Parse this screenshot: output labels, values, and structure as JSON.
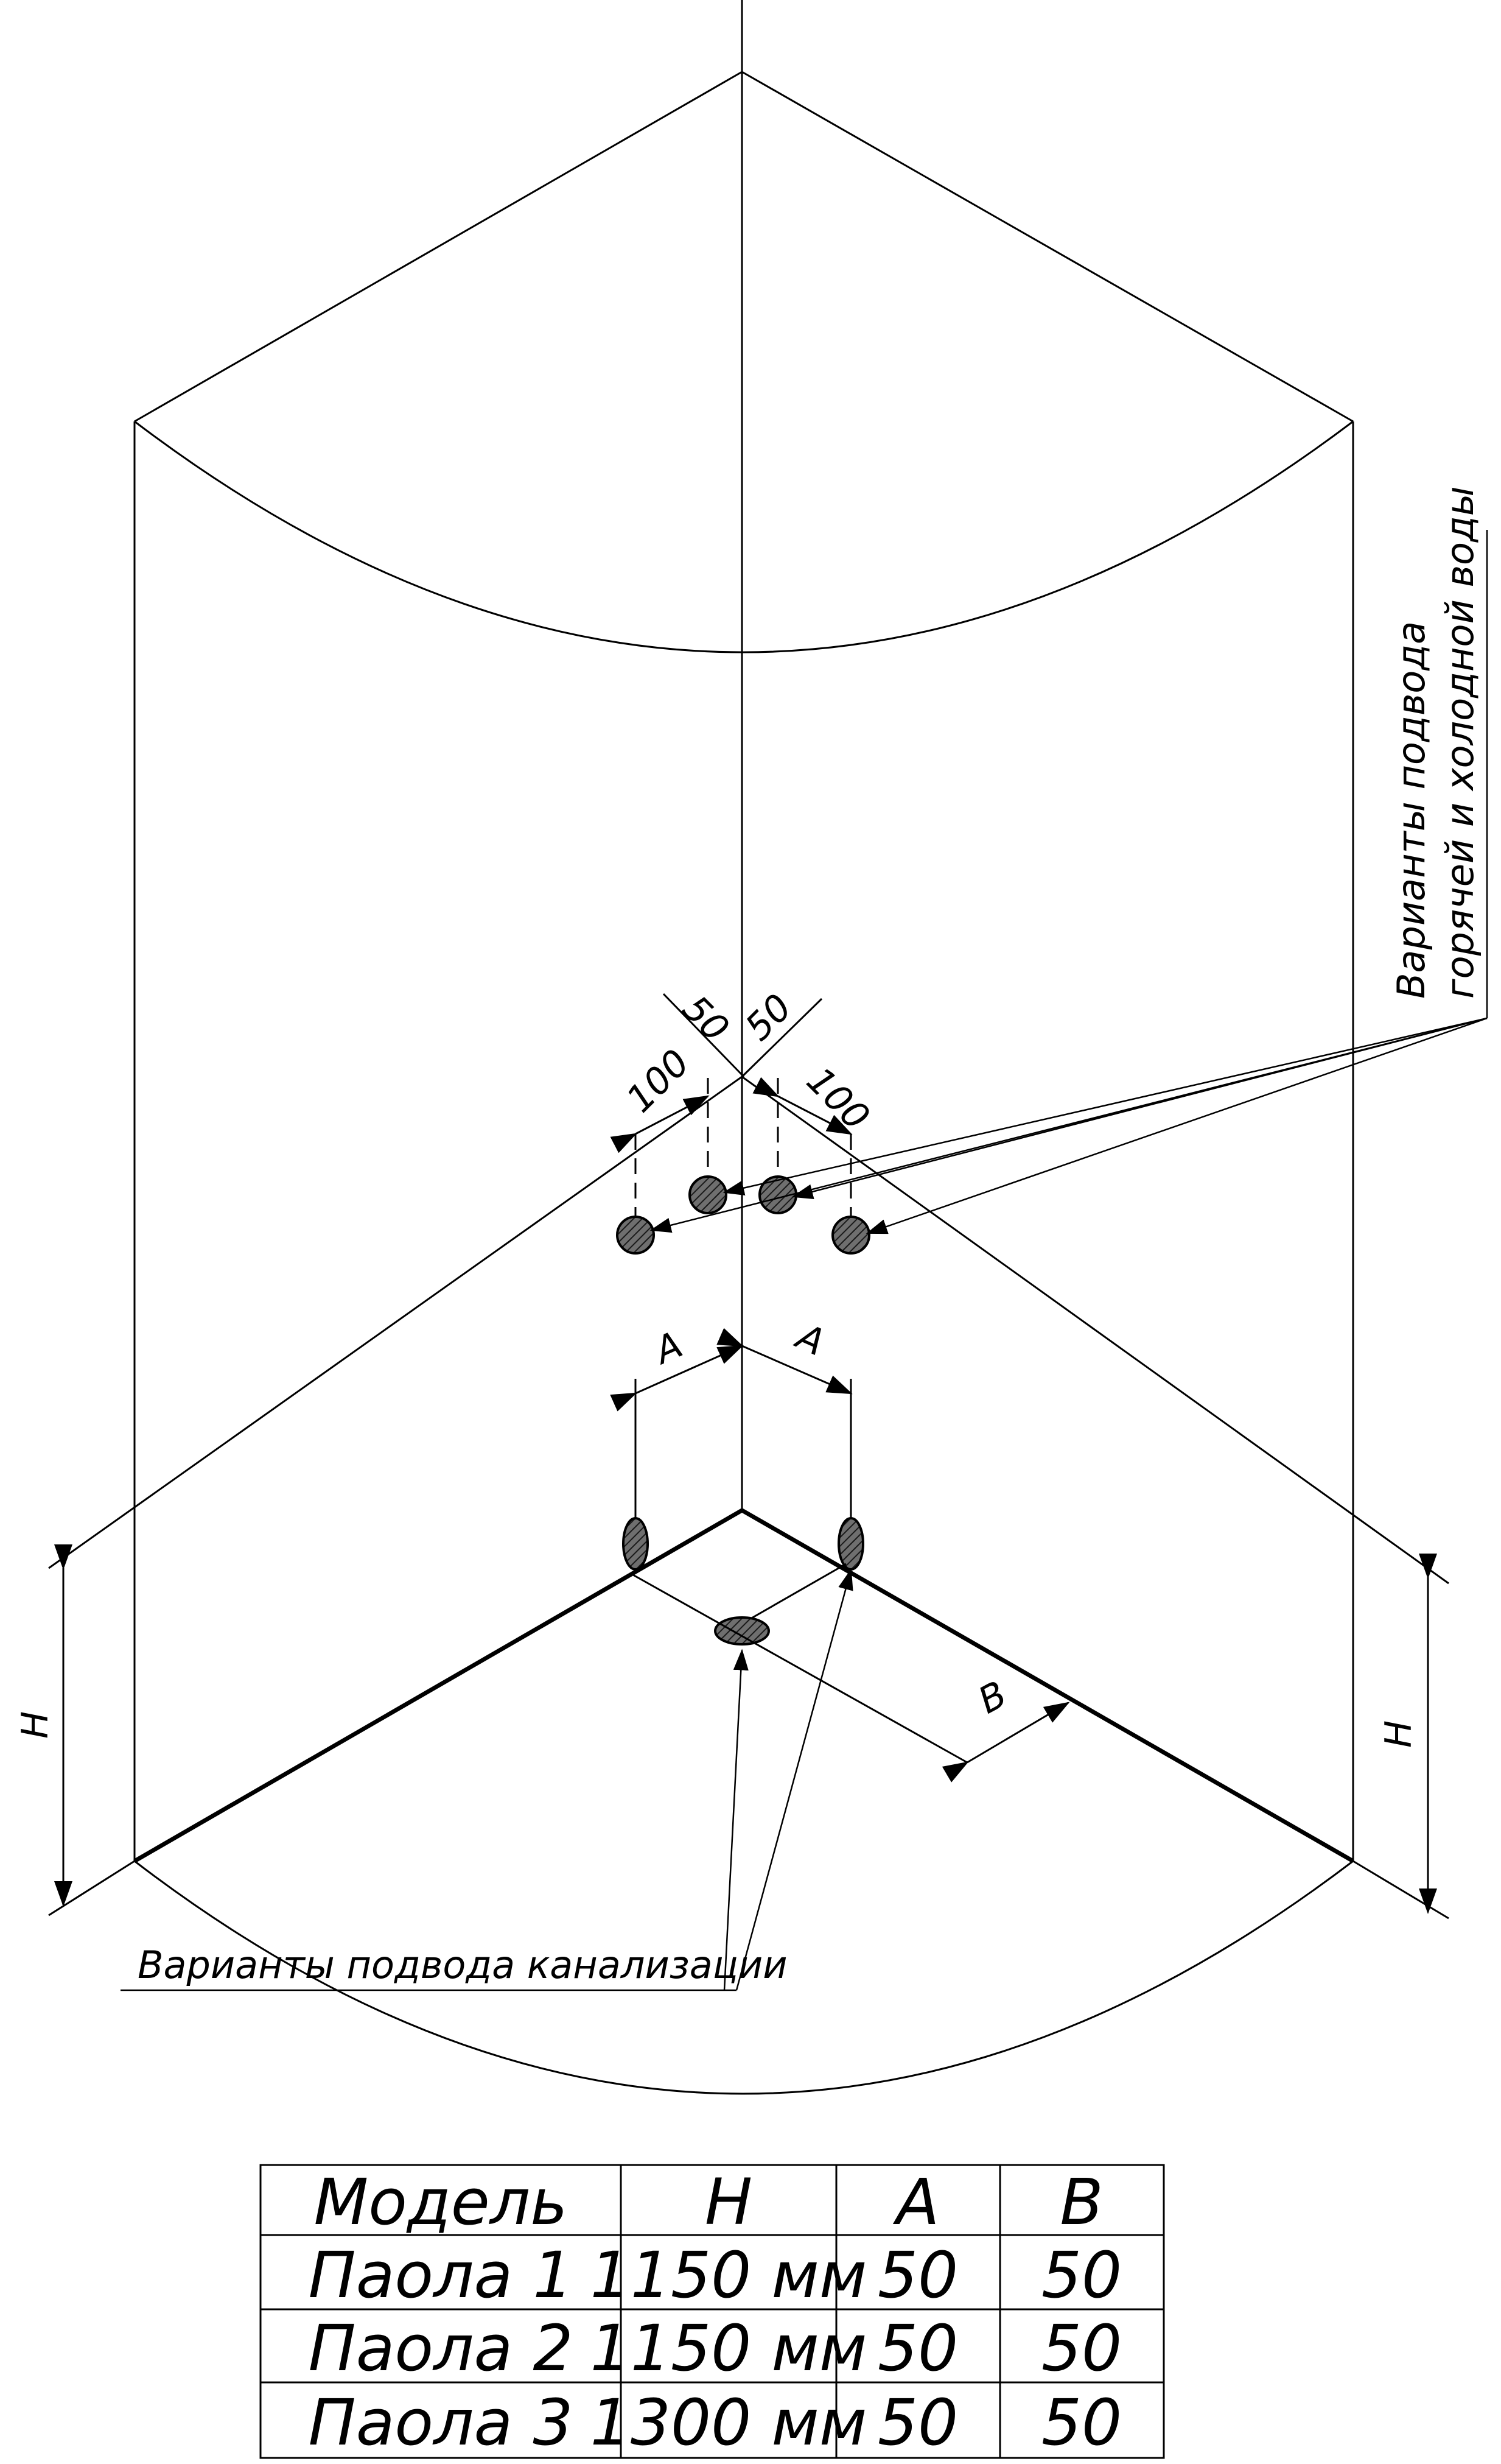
{
  "dimensions": {
    "left_offset": "50",
    "right_offset": "50",
    "left_spacing": "100",
    "right_spacing": "100",
    "a_left": "A",
    "a_right": "A",
    "b": "B",
    "h_left": "H",
    "h_right": "H"
  },
  "annotations": {
    "water_supply_line1": "Варианты подвода",
    "water_supply_line2": "горячей и холодной воды",
    "sewer_supply": "Варианты подвода канализации"
  },
  "table": {
    "headers": [
      "Модель",
      "H",
      "A",
      "B"
    ],
    "rows": [
      [
        "Паола 1",
        "1150 мм",
        "50",
        "50"
      ],
      [
        "Паола 2",
        "1150 мм",
        "50",
        "50"
      ],
      [
        "Паола 3",
        "1300 мм",
        "50",
        "50"
      ]
    ]
  }
}
